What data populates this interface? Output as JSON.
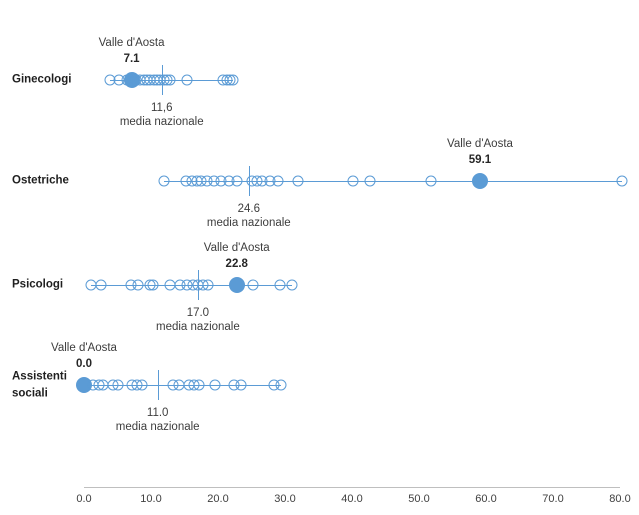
{
  "chart_data": {
    "type": "scatter",
    "title": "",
    "description": "Dot strip plot comparing Valle d'Aosta against all Italian regions and the national mean for four professional categories",
    "legend_position": "none",
    "grid": false,
    "colors": {
      "marker": "#5B9BD5",
      "axis_line": "#BFBFBF",
      "annotation_text": "#3d3d3d",
      "category_text": "#1f1f1f"
    },
    "x_axis": {
      "min": 0,
      "max": 80,
      "tick_step": 10,
      "tick_labels": [
        "0.0",
        "10.0",
        "20.0",
        "30.0",
        "40.0",
        "50.0",
        "60.0",
        "70.0",
        "80.0"
      ]
    },
    "rows": [
      {
        "category": "Ginecologi",
        "highlight": {
          "name": "Valle d'Aosta",
          "value": 7.1,
          "value_label": "7.1"
        },
        "mean": {
          "value": 11.6,
          "label": "11,6",
          "caption": "media nazionale"
        },
        "points": [
          3.9,
          5.2,
          6.4,
          7.7,
          8.3,
          8.9,
          9.4,
          9.9,
          10.4,
          10.9,
          11.4,
          11.9,
          12.4,
          12.9,
          15.4,
          20.8,
          21.3,
          21.8,
          22.3
        ]
      },
      {
        "category": "Ostetriche",
        "highlight": {
          "name": "Valle d'Aosta",
          "value": 59.1,
          "value_label": "59.1"
        },
        "mean": {
          "value": 24.6,
          "label": "24.6",
          "caption": "media nazionale"
        },
        "points": [
          11.9,
          15.2,
          16.1,
          16.8,
          17.5,
          18.4,
          19.4,
          20.4,
          21.6,
          22.9,
          25.1,
          25.8,
          26.6,
          27.7,
          29.0,
          32.0,
          40.2,
          42.7,
          51.8,
          80.3
        ]
      },
      {
        "category": "Psicologi",
        "highlight": {
          "name": "Valle d'Aosta",
          "value": 22.8,
          "value_label": "22.8"
        },
        "mean": {
          "value": 17.0,
          "label": "17.0",
          "caption": "media nazionale"
        },
        "points": [
          1.0,
          2.5,
          7.0,
          8.1,
          9.9,
          10.3,
          12.9,
          14.4,
          15.4,
          16.2,
          17.0,
          17.8,
          18.5,
          25.2,
          29.2,
          31.0
        ]
      },
      {
        "category": "Assistenti sociali",
        "highlight": {
          "name": "Valle d'Aosta",
          "value": 0.0,
          "value_label": "0.0"
        },
        "mean": {
          "value": 11.0,
          "label": "11.0",
          "caption": "media nazionale"
        },
        "points": [
          1.4,
          2.2,
          2.9,
          4.4,
          5.1,
          7.2,
          7.9,
          8.6,
          13.3,
          14.2,
          15.7,
          16.4,
          17.2,
          19.5,
          22.4,
          23.4,
          28.4,
          29.4
        ]
      }
    ]
  }
}
